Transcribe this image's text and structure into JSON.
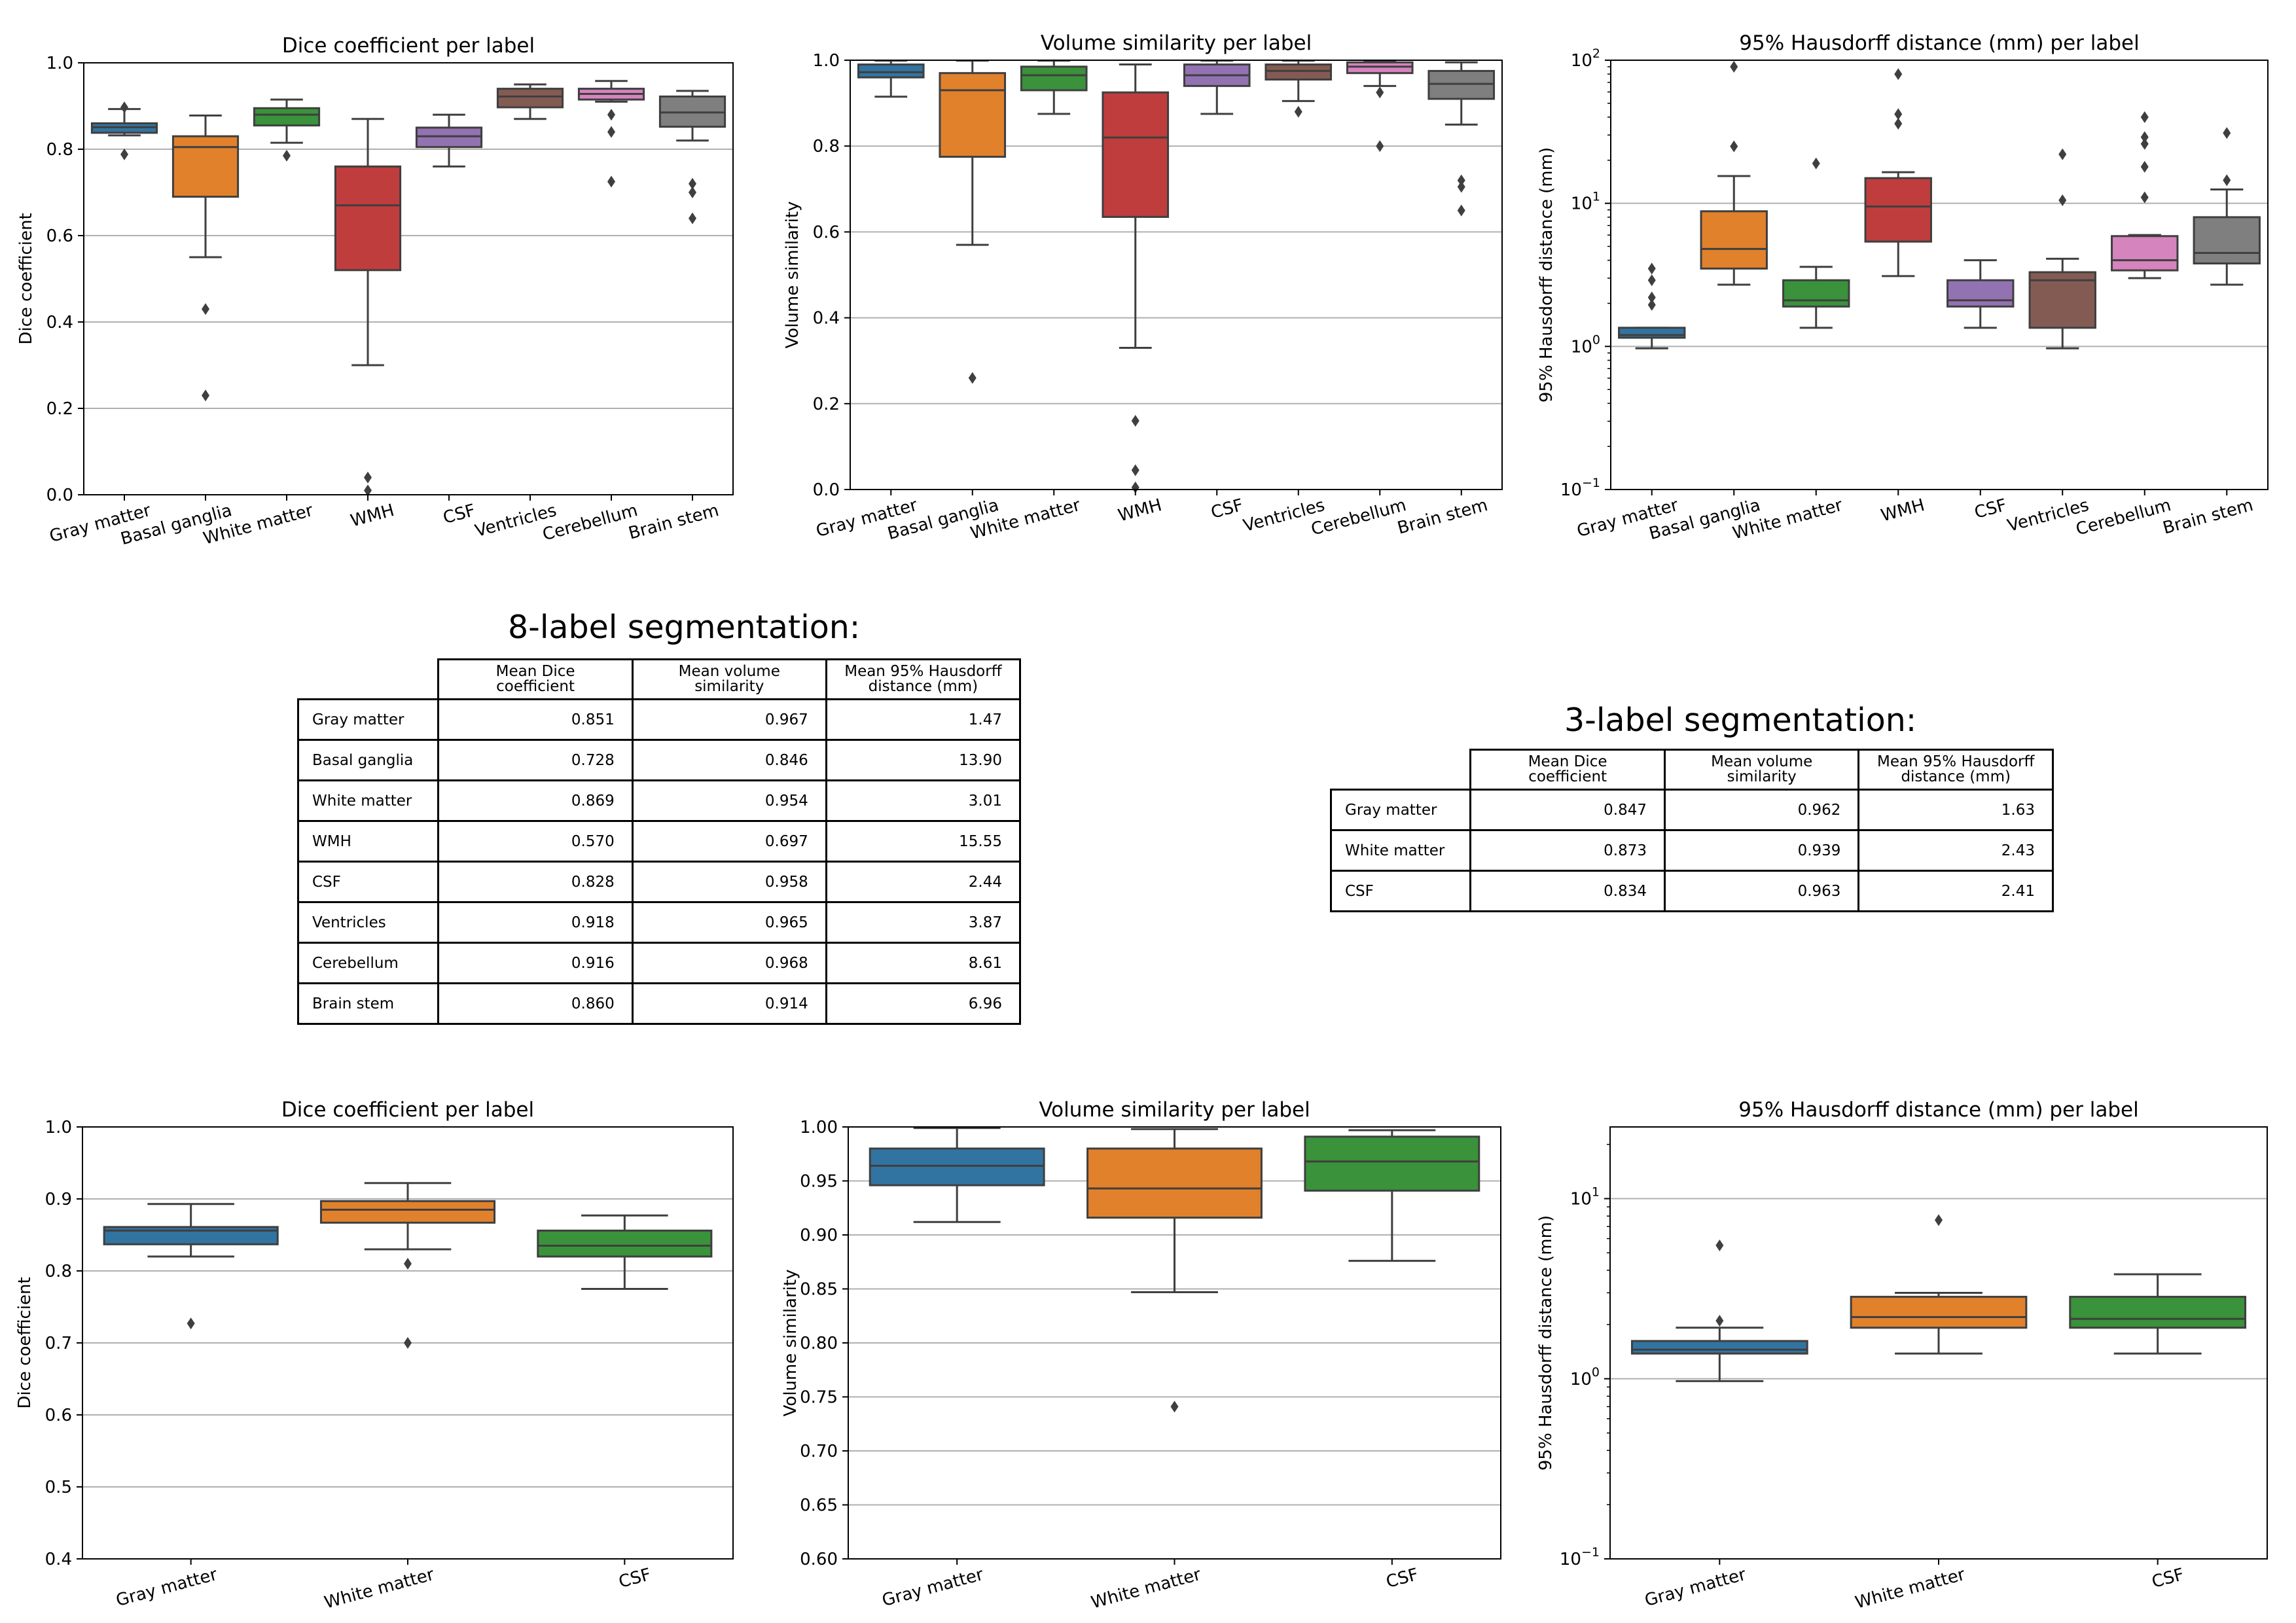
{
  "colors": {
    "box_palette": [
      "#3274a1",
      "#e1812c",
      "#3a923a",
      "#c03d3e",
      "#9372b2",
      "#845b53",
      "#d684bd",
      "#7f7f7f"
    ],
    "grid": "#b0b0b0",
    "line": "#3f3f3f"
  },
  "tables": {
    "eight": {
      "title": "8-label segmentation:",
      "headers": [
        "Mean Dice\ncoefficient",
        "Mean volume\nsimilarity",
        "Mean 95% Hausdorff\ndistance (mm)"
      ],
      "rows": [
        {
          "label": "Gray matter",
          "dice": "0.851",
          "vs": "0.967",
          "hd": "1.47"
        },
        {
          "label": "Basal ganglia",
          "dice": "0.728",
          "vs": "0.846",
          "hd": "13.90"
        },
        {
          "label": "White matter",
          "dice": "0.869",
          "vs": "0.954",
          "hd": "3.01"
        },
        {
          "label": "WMH",
          "dice": "0.570",
          "vs": "0.697",
          "hd": "15.55"
        },
        {
          "label": "CSF",
          "dice": "0.828",
          "vs": "0.958",
          "hd": "2.44"
        },
        {
          "label": "Ventricles",
          "dice": "0.918",
          "vs": "0.965",
          "hd": "3.87"
        },
        {
          "label": "Cerebellum",
          "dice": "0.916",
          "vs": "0.968",
          "hd": "8.61"
        },
        {
          "label": "Brain stem",
          "dice": "0.860",
          "vs": "0.914",
          "hd": "6.96"
        }
      ]
    },
    "three": {
      "title": "3-label segmentation:",
      "headers": [
        "Mean Dice\ncoefficient",
        "Mean volume\nsimilarity",
        "Mean 95% Hausdorff\ndistance (mm)"
      ],
      "rows": [
        {
          "label": "Gray matter",
          "dice": "0.847",
          "vs": "0.962",
          "hd": "1.63"
        },
        {
          "label": "White matter",
          "dice": "0.873",
          "vs": "0.939",
          "hd": "2.43"
        },
        {
          "label": "CSF",
          "dice": "0.834",
          "vs": "0.963",
          "hd": "2.41"
        }
      ]
    }
  },
  "chart_data": [
    {
      "type": "box",
      "title": "Dice coefficient per label",
      "xlabel": "",
      "ylabel": "Dice coefficient",
      "ylim": [
        0,
        1
      ],
      "yscale": "linear",
      "yticks": [
        "0.0",
        "0.2",
        "0.4",
        "0.6",
        "0.8",
        "1.0"
      ],
      "grid": "horizontal",
      "categories": [
        "Gray matter",
        "Basal ganglia",
        "White matter",
        "WMH",
        "CSF",
        "Ventricles",
        "Cerebellum",
        "Brain stem"
      ],
      "boxes": [
        {
          "q1": 0.838,
          "median": 0.851,
          "q3": 0.86,
          "whislo": 0.832,
          "whishi": 0.893,
          "fliers": [
            0.788,
            0.897
          ]
        },
        {
          "q1": 0.69,
          "median": 0.805,
          "q3": 0.83,
          "whislo": 0.55,
          "whishi": 0.878,
          "fliers": [
            0.43,
            0.23
          ]
        },
        {
          "q1": 0.855,
          "median": 0.88,
          "q3": 0.895,
          "whislo": 0.815,
          "whishi": 0.915,
          "fliers": [
            0.785
          ]
        },
        {
          "q1": 0.52,
          "median": 0.67,
          "q3": 0.76,
          "whislo": 0.3,
          "whishi": 0.87,
          "fliers": [
            0.04,
            0.01
          ]
        },
        {
          "q1": 0.805,
          "median": 0.83,
          "q3": 0.85,
          "whislo": 0.76,
          "whishi": 0.88,
          "fliers": []
        },
        {
          "q1": 0.897,
          "median": 0.922,
          "q3": 0.94,
          "whislo": 0.87,
          "whishi": 0.95,
          "fliers": []
        },
        {
          "q1": 0.915,
          "median": 0.928,
          "q3": 0.94,
          "whislo": 0.91,
          "whishi": 0.958,
          "fliers": [
            0.88,
            0.84,
            0.725
          ]
        },
        {
          "q1": 0.852,
          "median": 0.885,
          "q3": 0.922,
          "whislo": 0.82,
          "whishi": 0.935,
          "fliers": [
            0.72,
            0.7,
            0.64
          ]
        }
      ]
    },
    {
      "type": "box",
      "title": "Volume similarity per label",
      "xlabel": "",
      "ylabel": "Volume similarity",
      "ylim": [
        0,
        1
      ],
      "yscale": "linear",
      "yticks": [
        "0.0",
        "0.2",
        "0.4",
        "0.6",
        "0.8",
        "1.0"
      ],
      "grid": "horizontal",
      "categories": [
        "Gray matter",
        "Basal ganglia",
        "White matter",
        "WMH",
        "CSF",
        "Ventricles",
        "Cerebellum",
        "Brain stem"
      ],
      "boxes": [
        {
          "q1": 0.96,
          "median": 0.972,
          "q3": 0.99,
          "whislo": 0.915,
          "whishi": 0.999,
          "fliers": []
        },
        {
          "q1": 0.775,
          "median": 0.93,
          "q3": 0.97,
          "whislo": 0.57,
          "whishi": 0.999,
          "fliers": [
            0.26
          ]
        },
        {
          "q1": 0.93,
          "median": 0.965,
          "q3": 0.985,
          "whislo": 0.875,
          "whishi": 0.999,
          "fliers": []
        },
        {
          "q1": 0.635,
          "median": 0.82,
          "q3": 0.925,
          "whislo": 0.33,
          "whishi": 0.99,
          "fliers": [
            0.16,
            0.045,
            0.005
          ]
        },
        {
          "q1": 0.94,
          "median": 0.965,
          "q3": 0.99,
          "whislo": 0.875,
          "whishi": 0.999,
          "fliers": []
        },
        {
          "q1": 0.955,
          "median": 0.975,
          "q3": 0.99,
          "whislo": 0.905,
          "whishi": 0.999,
          "fliers": [
            0.88
          ]
        },
        {
          "q1": 0.97,
          "median": 0.985,
          "q3": 0.995,
          "whislo": 0.94,
          "whishi": 0.999,
          "fliers": [
            0.925,
            0.8
          ]
        },
        {
          "q1": 0.91,
          "median": 0.945,
          "q3": 0.975,
          "whislo": 0.85,
          "whishi": 0.995,
          "fliers": [
            0.72,
            0.705,
            0.65
          ]
        }
      ]
    },
    {
      "type": "box",
      "title": "95% Hausdorff distance (mm) per label",
      "xlabel": "",
      "ylabel": "95% Hausdorff distance (mm)",
      "ylim": [
        0.1,
        100
      ],
      "yscale": "log",
      "yticks": [
        "10^-1",
        "10^0",
        "10^1",
        "10^2"
      ],
      "grid": "horizontal",
      "categories": [
        "Gray matter",
        "Basal ganglia",
        "White matter",
        "WMH",
        "CSF",
        "Ventricles",
        "Cerebellum",
        "Brain stem"
      ],
      "boxes": [
        {
          "q1": 1.15,
          "median": 1.2,
          "q3": 1.35,
          "whislo": 0.97,
          "whishi": 1.35,
          "fliers": [
            3.5,
            2.9,
            2.2,
            1.95
          ]
        },
        {
          "q1": 3.5,
          "median": 4.8,
          "q3": 8.8,
          "whislo": 2.7,
          "whishi": 15.5,
          "fliers": [
            90,
            25
          ]
        },
        {
          "q1": 1.9,
          "median": 2.1,
          "q3": 2.9,
          "whislo": 1.35,
          "whishi": 3.6,
          "fliers": [
            19
          ]
        },
        {
          "q1": 5.4,
          "median": 9.5,
          "q3": 15,
          "whislo": 3.1,
          "whishi": 16.5,
          "fliers": [
            80,
            42,
            36
          ]
        },
        {
          "q1": 1.9,
          "median": 2.1,
          "q3": 2.9,
          "whislo": 1.35,
          "whishi": 4.0,
          "fliers": []
        },
        {
          "q1": 1.35,
          "median": 2.9,
          "q3": 3.3,
          "whislo": 0.97,
          "whishi": 4.1,
          "fliers": [
            22,
            10.5
          ]
        },
        {
          "q1": 3.4,
          "median": 4.0,
          "q3": 5.9,
          "whislo": 3.0,
          "whishi": 6.0,
          "fliers": [
            40,
            29,
            26,
            18,
            11
          ]
        },
        {
          "q1": 3.8,
          "median": 4.5,
          "q3": 8.0,
          "whislo": 2.7,
          "whishi": 12.5,
          "fliers": [
            31,
            14.5
          ]
        }
      ]
    },
    {
      "type": "box",
      "title": "Dice coefficient per label",
      "xlabel": "",
      "ylabel": "Dice coefficient",
      "ylim": [
        0.4,
        1
      ],
      "yscale": "linear",
      "yticks": [
        "0.4",
        "0.5",
        "0.6",
        "0.7",
        "0.8",
        "0.9",
        "1.0"
      ],
      "grid": "horizontal",
      "categories": [
        "Gray matter",
        "White matter",
        "CSF"
      ],
      "boxes": [
        {
          "q1": 0.837,
          "median": 0.856,
          "q3": 0.861,
          "whislo": 0.82,
          "whishi": 0.893,
          "fliers": [
            0.727
          ]
        },
        {
          "q1": 0.867,
          "median": 0.885,
          "q3": 0.897,
          "whislo": 0.83,
          "whishi": 0.922,
          "fliers": [
            0.81,
            0.7
          ]
        },
        {
          "q1": 0.82,
          "median": 0.835,
          "q3": 0.856,
          "whislo": 0.775,
          "whishi": 0.877,
          "fliers": []
        }
      ]
    },
    {
      "type": "box",
      "title": "Volume similarity per label",
      "xlabel": "",
      "ylabel": "Volume similarity",
      "ylim": [
        0.6,
        1
      ],
      "yscale": "linear",
      "yticks": [
        "0.60",
        "0.65",
        "0.70",
        "0.75",
        "0.80",
        "0.85",
        "0.90",
        "0.95",
        "1.00"
      ],
      "grid": "horizontal",
      "categories": [
        "Gray matter",
        "White matter",
        "CSF"
      ],
      "boxes": [
        {
          "q1": 0.946,
          "median": 0.964,
          "q3": 0.98,
          "whislo": 0.912,
          "whishi": 0.999,
          "fliers": []
        },
        {
          "q1": 0.916,
          "median": 0.943,
          "q3": 0.98,
          "whislo": 0.847,
          "whishi": 0.998,
          "fliers": [
            0.741
          ]
        },
        {
          "q1": 0.941,
          "median": 0.968,
          "q3": 0.991,
          "whislo": 0.876,
          "whishi": 0.997,
          "fliers": []
        }
      ]
    },
    {
      "type": "box",
      "title": "95% Hausdorff distance (mm) per label",
      "xlabel": "",
      "ylabel": "95% Hausdorff distance (mm)",
      "ylim": [
        0.1,
        25
      ],
      "yscale": "log",
      "yticks": [
        "10^-1",
        "10^0",
        "10^1"
      ],
      "grid": "horizontal",
      "categories": [
        "Gray matter",
        "White matter",
        "CSF"
      ],
      "boxes": [
        {
          "q1": 1.38,
          "median": 1.45,
          "q3": 1.62,
          "whislo": 0.97,
          "whishi": 1.92,
          "fliers": [
            5.5,
            2.1
          ]
        },
        {
          "q1": 1.92,
          "median": 2.2,
          "q3": 2.85,
          "whislo": 1.38,
          "whishi": 3.0,
          "fliers": [
            7.6
          ]
        },
        {
          "q1": 1.92,
          "median": 2.15,
          "q3": 2.85,
          "whislo": 1.38,
          "whishi": 3.8,
          "fliers": []
        }
      ]
    }
  ]
}
